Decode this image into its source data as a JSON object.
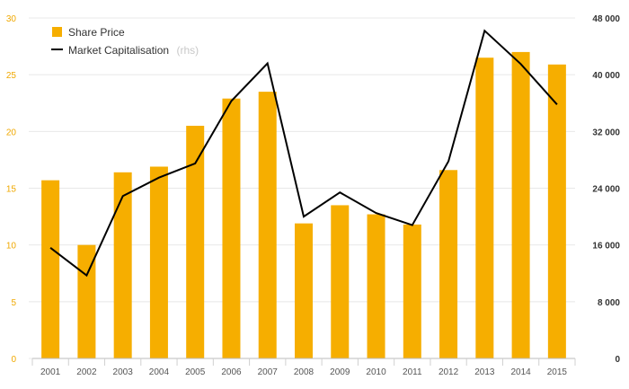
{
  "chart_data": {
    "type": "bar+line",
    "categories": [
      "2001",
      "2002",
      "2003",
      "2004",
      "2005",
      "2006",
      "2007",
      "2008",
      "2009",
      "2010",
      "2011",
      "2012",
      "2013",
      "2014",
      "2015"
    ],
    "series": [
      {
        "name": "Share Price",
        "type": "bar",
        "axis": "left",
        "color": "#f6ae00",
        "values": [
          15.7,
          10.0,
          16.4,
          16.9,
          20.5,
          22.9,
          23.5,
          11.9,
          13.5,
          12.7,
          11.8,
          16.6,
          26.5,
          27.0,
          25.9
        ]
      },
      {
        "name": "Market Capitalisation",
        "type": "line",
        "axis": "right",
        "color": "#000000",
        "values": [
          15600,
          11700,
          22900,
          25500,
          27500,
          36300,
          41600,
          20000,
          23400,
          20500,
          18800,
          27800,
          46200,
          41500,
          35800
        ]
      }
    ],
    "y_left": {
      "min": 0,
      "max": 30,
      "ticks": [
        "0",
        "5",
        "10",
        "15",
        "20",
        "25",
        "30"
      ]
    },
    "y_right": {
      "min": 0,
      "max": 48000,
      "ticks": [
        "0",
        "8 000",
        "16 000",
        "24 000",
        "32 000",
        "40 000",
        "48 000"
      ]
    },
    "legend": {
      "bar_label": "Share Price",
      "line_label": "Market Capitalisation",
      "rhs_note": "(rhs)",
      "placement": "top-left"
    },
    "grid": "horizontal"
  }
}
